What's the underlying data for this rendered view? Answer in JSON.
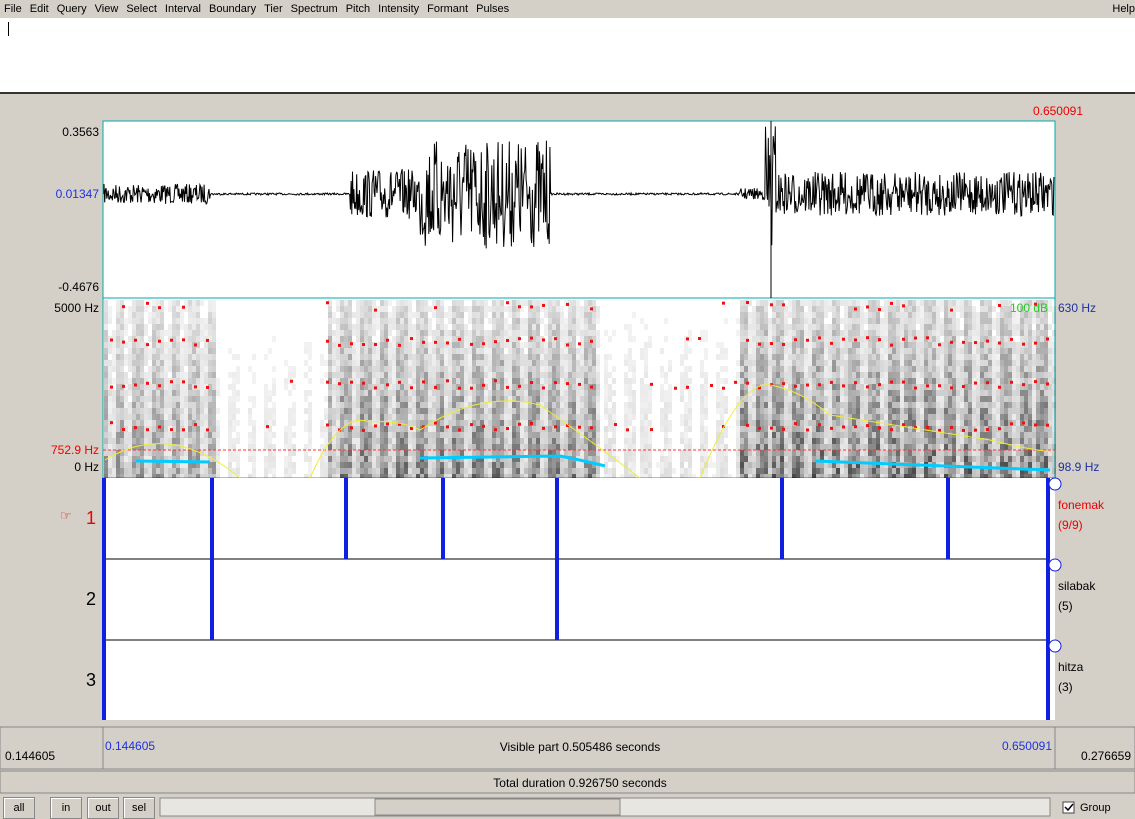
{
  "menu": [
    "File",
    "Edit",
    "Query",
    "View",
    "Select",
    "Interval",
    "Boundary",
    "Tier",
    "Spectrum",
    "Pitch",
    "Intensity",
    "Formant",
    "Pulses"
  ],
  "help": "Help",
  "cursor_time": "0.650091",
  "waveform": {
    "top": "0.3563",
    "cursor_value": "0.01347",
    "bottom": "-0.4676"
  },
  "spectrogram": {
    "top": "5000 Hz",
    "cursor": "752.9 Hz",
    "bottom": "0 Hz",
    "intensity_top": "100 dB",
    "pitch_top": "630 Hz",
    "pitch_bottom": "98.9 Hz"
  },
  "tiers": [
    {
      "number": "1",
      "name": "fonemak",
      "count": "(9/9)"
    },
    {
      "number": "2",
      "name": "silabak",
      "count": "(5)"
    },
    {
      "number": "3",
      "name": "hitza",
      "count": "(3)"
    }
  ],
  "footer": {
    "window_start": "0.144605",
    "visible_start": "0.144605",
    "visible_part": "Visible part 0.505486 seconds",
    "visible_end": "0.650091",
    "after": "0.276659",
    "total": "Total duration 0.926750 seconds"
  },
  "buttons": [
    "all",
    "in",
    "out",
    "sel"
  ],
  "group": "Group"
}
